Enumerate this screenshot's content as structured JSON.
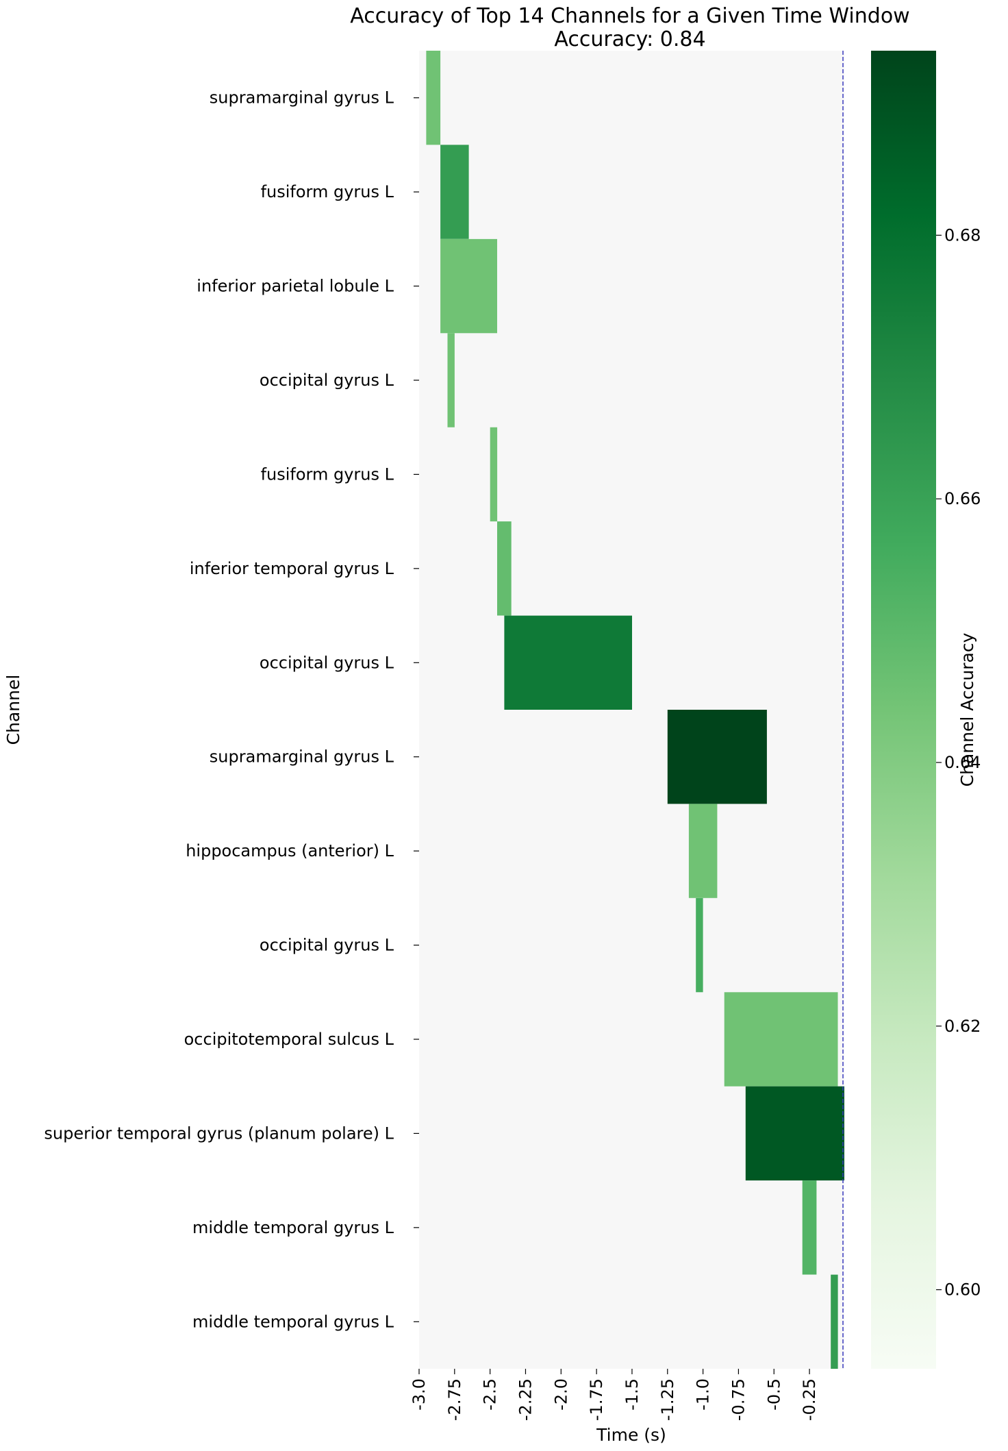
{
  "chart_data": {
    "type": "heatmap",
    "title": "Accuracy of Top 14 Channels for a Given Time Window",
    "subtitle": "Accuracy: 0.84",
    "xlabel": "Time (s)",
    "ylabel": "Channel",
    "colorbar_label": "Channel Accuracy",
    "xlim": [
      -3.0,
      0.0
    ],
    "x_ticks": [
      -3.0,
      -2.75,
      -2.5,
      -2.25,
      -2.0,
      -1.75,
      -1.5,
      -1.25,
      -1.0,
      -0.75,
      -0.5,
      -0.25
    ],
    "x_tick_labels": [
      "-3.0",
      "-2.75",
      "-2.5",
      "-2.25",
      "-2.0",
      "-1.75",
      "-1.5",
      "-1.25",
      "-1.0",
      "-0.75",
      "-0.5",
      "-0.25"
    ],
    "colorbar_range": [
      0.594,
      0.694
    ],
    "colorbar_ticks": [
      0.6,
      0.62,
      0.64,
      0.66,
      0.68
    ],
    "colorbar_tick_labels": [
      "0.60",
      "0.62",
      "0.64",
      "0.66",
      "0.68"
    ],
    "colormap": "Greens",
    "background_color": "#f7f7f7",
    "reference_line": {
      "x": 0.0,
      "color": "#3b3bbf",
      "style": "dashed"
    },
    "channels": [
      {
        "label": "supramarginal gyrus L",
        "start": -2.95,
        "end": -2.85,
        "accuracy": 0.645
      },
      {
        "label": "fusiform gyrus L",
        "start": -2.85,
        "end": -2.65,
        "accuracy": 0.662
      },
      {
        "label": "inferior parietal lobule L",
        "start": -2.85,
        "end": -2.45,
        "accuracy": 0.645
      },
      {
        "label": "occipital gyrus L",
        "start": -2.8,
        "end": -2.75,
        "accuracy": 0.645
      },
      {
        "label": "fusiform gyrus L",
        "start": -2.5,
        "end": -2.45,
        "accuracy": 0.645
      },
      {
        "label": "inferior temporal gyrus L",
        "start": -2.45,
        "end": -2.35,
        "accuracy": 0.648
      },
      {
        "label": "occipital gyrus L",
        "start": -2.4,
        "end": -1.5,
        "accuracy": 0.676
      },
      {
        "label": "supramarginal gyrus L",
        "start": -1.25,
        "end": -0.55,
        "accuracy": 0.694
      },
      {
        "label": "hippocampus (anterior) L",
        "start": -1.1,
        "end": -0.9,
        "accuracy": 0.645
      },
      {
        "label": "occipital gyrus L",
        "start": -1.05,
        "end": -1.0,
        "accuracy": 0.655
      },
      {
        "label": "occipitotemporal sulcus L",
        "start": -0.85,
        "end": -0.05,
        "accuracy": 0.645
      },
      {
        "label": "superior temporal gyrus (planum polare) L",
        "start": -0.7,
        "end": 0.0,
        "accuracy": 0.688
      },
      {
        "label": "middle temporal gyrus L",
        "start": -0.3,
        "end": -0.2,
        "accuracy": 0.652
      },
      {
        "label": "middle temporal gyrus L",
        "start": -0.1,
        "end": -0.05,
        "accuracy": 0.662
      }
    ]
  }
}
